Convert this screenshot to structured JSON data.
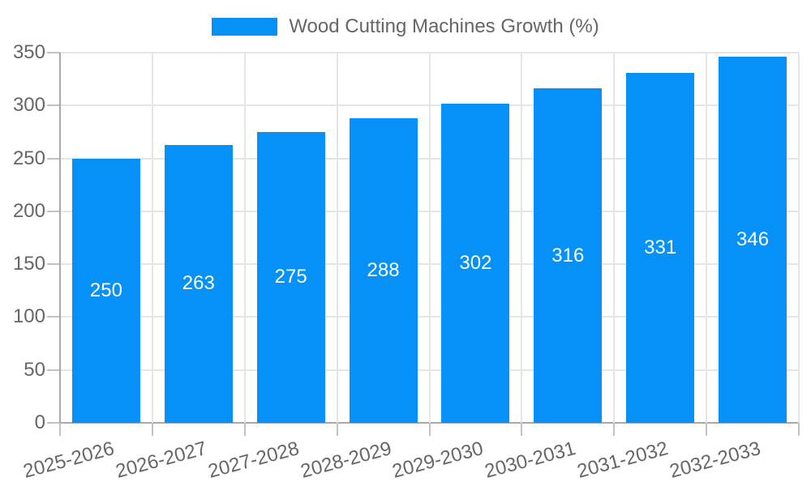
{
  "chart_data": {
    "type": "bar",
    "title": "",
    "legend": {
      "label": "Wood Cutting Machines Growth (%)",
      "position": "top"
    },
    "categories": [
      "2025-2026",
      "2026-2027",
      "2027-2028",
      "2028-2029",
      "2029-2030",
      "2030-2031",
      "2031-2032",
      "2032-2033"
    ],
    "values": [
      250,
      263,
      275,
      288,
      302,
      316,
      331,
      346
    ],
    "bar_value_labels": [
      "250",
      "263",
      "275",
      "288",
      "302",
      "316",
      "331",
      "346"
    ],
    "xlabel": "",
    "ylabel": "",
    "ylim": [
      0,
      350
    ],
    "ytick_step": 50,
    "yticks": [
      0,
      50,
      100,
      150,
      200,
      250,
      300,
      350
    ],
    "grid": true,
    "x_labels_rotated_deg": -15,
    "colors": {
      "bar": "#0691F8",
      "bar_label_text": "#FFFFFF",
      "axis_text": "#666666",
      "legend_text": "#666666",
      "grid_line": "#E5E5E5",
      "axis_line": "#A9A9A9",
      "tick_mark": "#C2C2C2",
      "background": "#FFFFFF"
    }
  }
}
